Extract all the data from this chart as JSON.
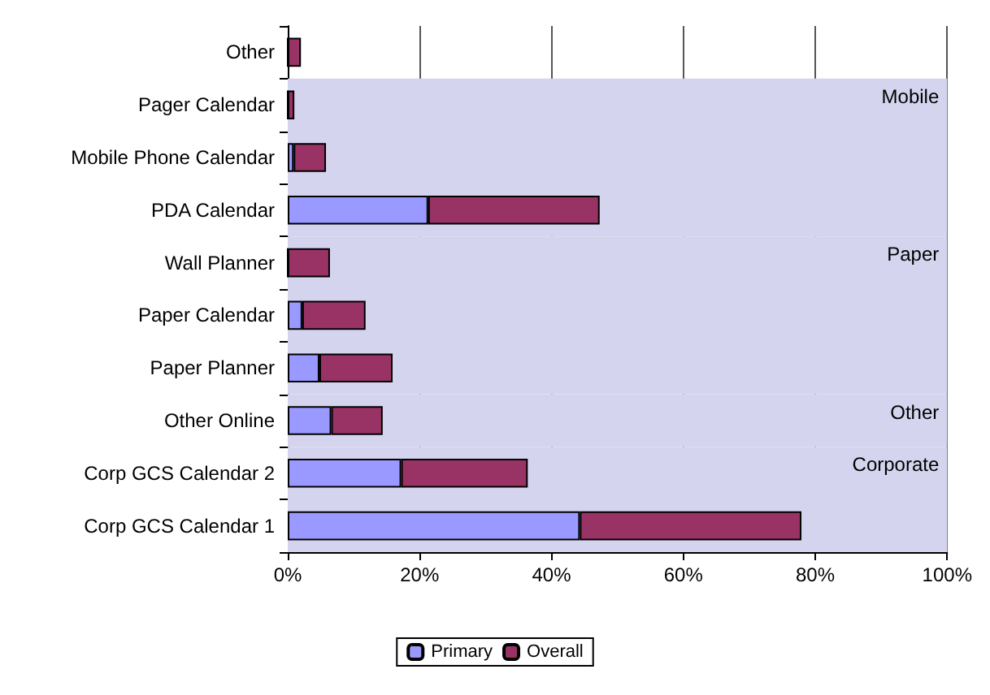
{
  "chart_data": {
    "type": "bar",
    "orientation": "horizontal",
    "stacked": true,
    "categories": [
      "Other",
      "Pager Calendar",
      "Mobile Phone Calendar",
      "PDA Calendar",
      "Wall Planner",
      "Paper Calendar",
      "Paper Planner",
      "Other Online",
      "Corp GCS Calendar 2",
      "Corp GCS Calendar 1"
    ],
    "series": [
      {
        "name": "Primary",
        "color": "#9999ff",
        "values": [
          0,
          0,
          0.9,
          21.3,
          0,
          2.2,
          4.8,
          6.6,
          17.2,
          44.3
        ]
      },
      {
        "name": "Overall",
        "color": "#993366",
        "values": [
          2.0,
          1.0,
          4.9,
          26.0,
          6.4,
          9.6,
          11.1,
          7.8,
          19.2,
          33.6
        ]
      }
    ],
    "xlim": [
      0,
      100
    ],
    "xticks": [
      {
        "value": 0,
        "label": "0%"
      },
      {
        "value": 20,
        "label": "20%"
      },
      {
        "value": 40,
        "label": "40%"
      },
      {
        "value": 60,
        "label": "60%"
      },
      {
        "value": 80,
        "label": "80%"
      },
      {
        "value": 100,
        "label": "100%"
      }
    ],
    "bands": [
      {
        "axis": "y",
        "from": "Pager Calendar",
        "to": "PDA Calendar",
        "label": "Mobile",
        "color": "#d4d4ee"
      },
      {
        "axis": "y",
        "from": "Wall Planner",
        "to": "Paper Planner",
        "label": "Paper",
        "color": "#d4d4ee"
      },
      {
        "axis": "y",
        "from": "Other Online",
        "to": "Other Online",
        "label": "Other",
        "color": "#d4d4ee"
      },
      {
        "axis": "y",
        "from": "Corp GCS Calendar 2",
        "to": "Corp GCS Calendar 1",
        "label": "Corporate",
        "color": "#d4d4ee"
      }
    ],
    "grid": "x",
    "legend": "bottom"
  }
}
